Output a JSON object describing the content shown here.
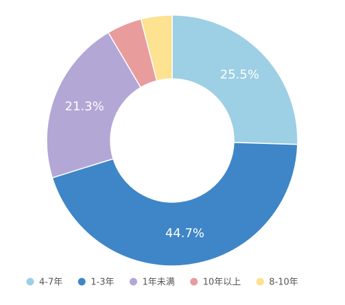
{
  "chart_data": {
    "type": "donut",
    "categories": [
      "4-7年",
      "1-3年",
      "1年未满",
      "10年以上",
      "8-10年"
    ],
    "values": [
      25.5,
      44.7,
      21.3,
      4.5,
      4.0
    ],
    "value_labels": [
      "25.5%",
      "44.7%",
      "21.3%",
      null,
      null
    ],
    "colors": [
      "#9dcfe5",
      "#3e86c7",
      "#b3a7d6",
      "#e89c9c",
      "#fce291"
    ],
    "legend": "bottom"
  }
}
